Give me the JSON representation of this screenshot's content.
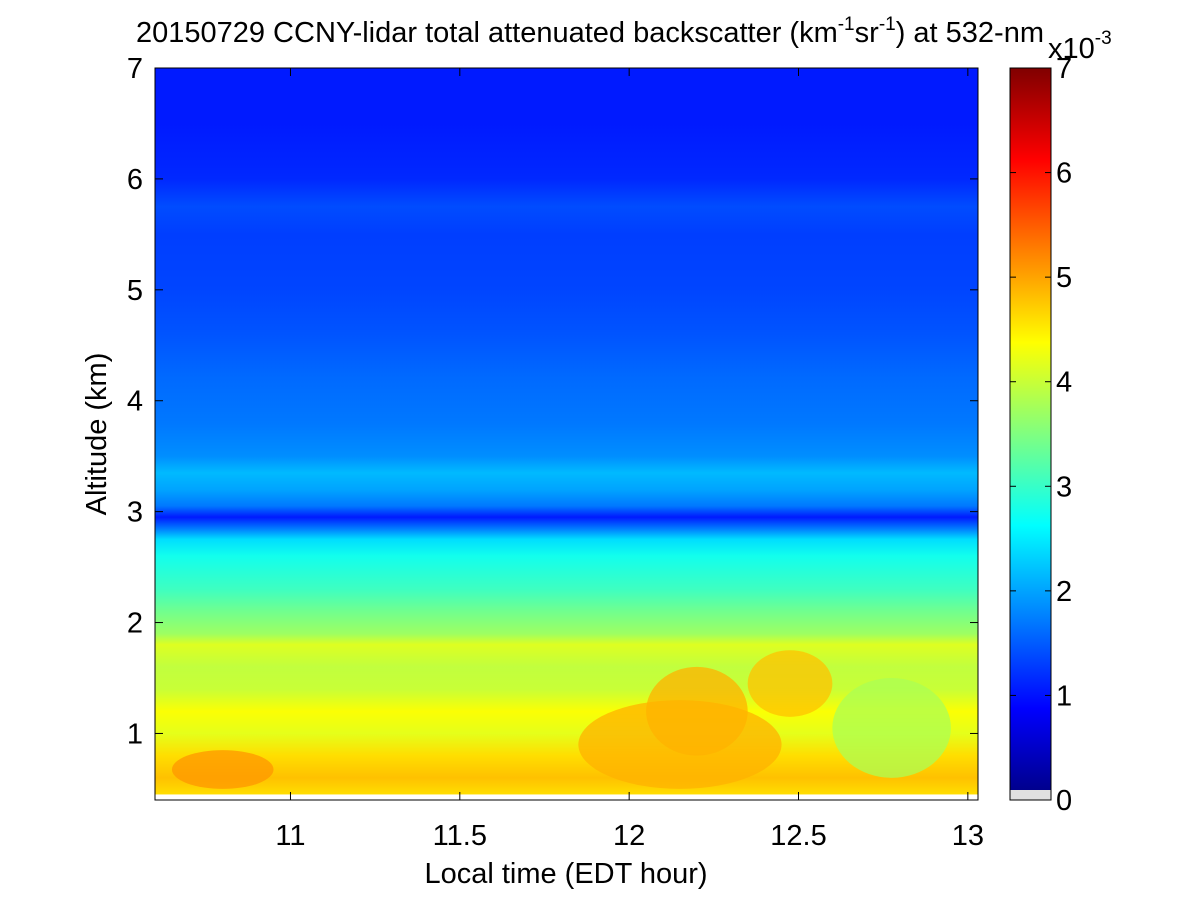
{
  "chart_data": {
    "type": "heatmap",
    "title_parts": {
      "prefix": "20150729 CCNY-lidar total attenuated backscatter (km",
      "exp1": "-1",
      "mid": "sr",
      "exp2": "-1",
      "suffix": ") at 532-nm"
    },
    "xlabel": "Local time (EDT hour)",
    "ylabel": "Altitude (km)",
    "xlim": [
      10.6,
      13.03
    ],
    "ylim": [
      0.4,
      7
    ],
    "x_ticks": [
      "11",
      "11.5",
      "12",
      "12.5",
      "13"
    ],
    "x_tick_values": [
      11,
      11.5,
      12,
      12.5,
      13
    ],
    "y_ticks": [
      "1",
      "2",
      "3",
      "4",
      "5",
      "6",
      "7"
    ],
    "y_tick_values": [
      1,
      2,
      3,
      4,
      5,
      6,
      7
    ],
    "data_y_min": 0.45,
    "colorbar": {
      "range": [
        0,
        7
      ],
      "ticks": [
        "0",
        "1",
        "2",
        "3",
        "4",
        "5",
        "6",
        "7"
      ],
      "tick_values": [
        0,
        1,
        2,
        3,
        4,
        5,
        6,
        7
      ],
      "multiplier_base": "x10",
      "multiplier_exp": "-3",
      "colormap": "jet",
      "bottom_color": "#e0e0e0"
    },
    "altitude_profile": [
      {
        "alt": 0.45,
        "value": 4.6
      },
      {
        "alt": 0.6,
        "value": 4.8
      },
      {
        "alt": 0.8,
        "value": 4.6
      },
      {
        "alt": 1.0,
        "value": 4.2
      },
      {
        "alt": 1.2,
        "value": 4.35
      },
      {
        "alt": 1.4,
        "value": 4.0
      },
      {
        "alt": 1.6,
        "value": 3.95
      },
      {
        "alt": 1.8,
        "value": 4.15
      },
      {
        "alt": 1.9,
        "value": 3.7
      },
      {
        "alt": 2.1,
        "value": 3.4
      },
      {
        "alt": 2.3,
        "value": 3.05
      },
      {
        "alt": 2.45,
        "value": 2.9
      },
      {
        "alt": 2.6,
        "value": 2.75
      },
      {
        "alt": 2.75,
        "value": 2.4
      },
      {
        "alt": 2.85,
        "value": 1.7
      },
      {
        "alt": 2.95,
        "value": 1.05
      },
      {
        "alt": 3.05,
        "value": 1.7
      },
      {
        "alt": 3.2,
        "value": 2.0
      },
      {
        "alt": 3.35,
        "value": 2.15
      },
      {
        "alt": 3.5,
        "value": 1.85
      },
      {
        "alt": 3.8,
        "value": 1.7
      },
      {
        "alt": 4.2,
        "value": 1.6
      },
      {
        "alt": 4.6,
        "value": 1.45
      },
      {
        "alt": 5.0,
        "value": 1.35
      },
      {
        "alt": 5.5,
        "value": 1.3
      },
      {
        "alt": 5.75,
        "value": 1.4
      },
      {
        "alt": 6.0,
        "value": 1.15
      },
      {
        "alt": 6.5,
        "value": 1.05
      },
      {
        "alt": 7.0,
        "value": 1.05
      }
    ],
    "features": [
      {
        "name": "aerosol-patch",
        "x": [
          11.85,
          12.45
        ],
        "y": [
          0.5,
          1.3
        ],
        "value": 4.9
      },
      {
        "name": "aerosol-patch",
        "x": [
          12.05,
          12.35
        ],
        "y": [
          0.8,
          1.6
        ],
        "value": 4.9
      },
      {
        "name": "aerosol-patch",
        "x": [
          12.35,
          12.6
        ],
        "y": [
          1.15,
          1.75
        ],
        "value": 4.8
      },
      {
        "name": "aerosol-patch",
        "x": [
          10.65,
          10.95
        ],
        "y": [
          0.5,
          0.85
        ],
        "value": 5.1
      },
      {
        "name": "aerosol-patch",
        "x": [
          12.6,
          12.95
        ],
        "y": [
          0.6,
          1.5
        ],
        "value": 3.8
      }
    ]
  }
}
